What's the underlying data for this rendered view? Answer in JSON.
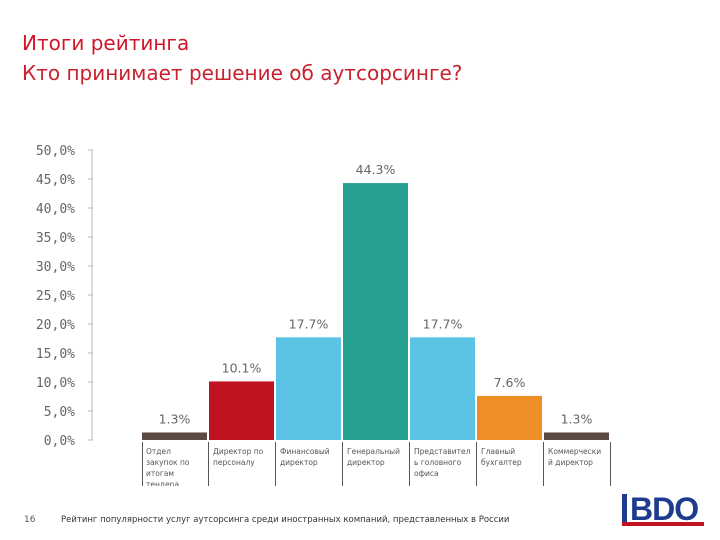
{
  "header": {
    "title": "Итоги рейтинга",
    "subtitle": "Кто принимает решение об аутсорсинге?"
  },
  "chart_data": {
    "type": "bar",
    "categories": [
      "Отдел закупок по итогам тендера",
      "Директор по персоналу",
      "Финансовый директор",
      "Генеральный директор",
      "Представитель головного офиса",
      "Главный бухгалтер",
      "Коммерческий директор"
    ],
    "category_display": [
      "Отдел закупок по итогам тендера",
      "Директор по персоналу",
      "Финансовый директор",
      "Генеральный директор",
      "Представител ь головного офиса",
      "Главный бухгалтер",
      "Коммерческий директор"
    ],
    "values": [
      1.3,
      10.1,
      17.7,
      44.3,
      17.7,
      7.6,
      1.3
    ],
    "value_labels": [
      "1.3%",
      "10.1%",
      "17.7%",
      "44.3%",
      "17.7%",
      "7.6%",
      "1.3%"
    ],
    "colors": [
      "#5a4a44",
      "#c0131f",
      "#5bc4e4",
      "#26a091",
      "#5bc4e4",
      "#ee8e25",
      "#5a4a44"
    ],
    "ylim": [
      0,
      50
    ],
    "ytick_values": [
      0,
      5,
      10,
      15,
      20,
      25,
      30,
      35,
      40,
      45,
      50
    ],
    "ytick_labels": [
      "0,0%",
      "5,0%",
      "10,0%",
      "15,0%",
      "20,0%",
      "25,0%",
      "30,0%",
      "35,0%",
      "40,0%",
      "45,0%",
      "50,0%"
    ],
    "grid": false,
    "legend": "none"
  },
  "footer": {
    "page_number": "16",
    "text": "Рейтинг популярности услуг аутсорсинга среди иностранных компаний, представленных в России"
  },
  "logo": {
    "text": "BDO",
    "color": "#1d3c8e",
    "accent": "#c0131f"
  }
}
